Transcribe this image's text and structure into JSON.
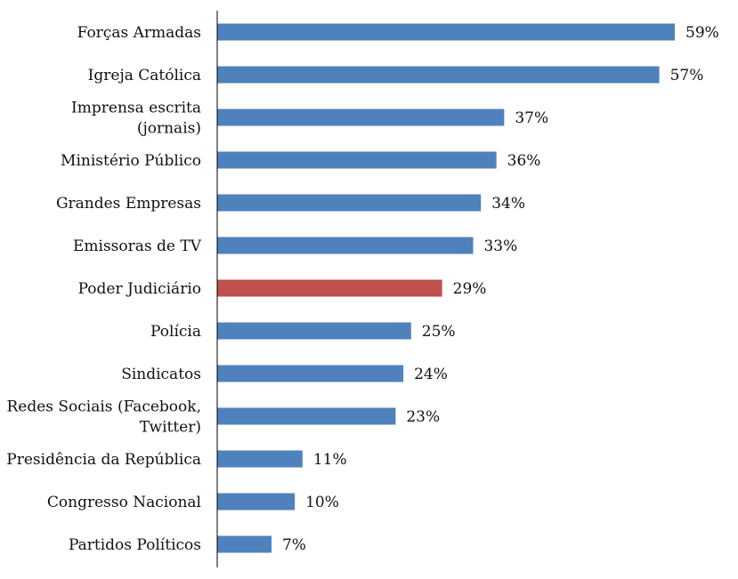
{
  "chart_data": {
    "type": "bar",
    "orientation": "horizontal",
    "categories": [
      [
        "Forças Armadas"
      ],
      [
        "Igreja Católica"
      ],
      [
        "Imprensa escrita",
        "(jornais)"
      ],
      [
        "Ministério Público"
      ],
      [
        "Grandes Empresas"
      ],
      [
        "Emissoras de TV"
      ],
      [
        "Poder Judiciário"
      ],
      [
        "Polícia"
      ],
      [
        "Sindicatos"
      ],
      [
        "Redes Sociais (Facebook,",
        "Twitter)"
      ],
      [
        "Presidência da República"
      ],
      [
        "Congresso Nacional"
      ],
      [
        "Partidos Políticos"
      ]
    ],
    "values": [
      59,
      57,
      37,
      36,
      34,
      33,
      29,
      25,
      24,
      23,
      11,
      10,
      7
    ],
    "value_labels": [
      "59%",
      "57%",
      "37%",
      "36%",
      "34%",
      "33%",
      "29%",
      "25%",
      "24%",
      "23%",
      "11%",
      "10%",
      "7%"
    ],
    "highlight_index": 6,
    "colors": {
      "default": "#4F81BD",
      "highlight": "#C0504D",
      "axis": "#000000"
    },
    "xlim": [
      0,
      59
    ],
    "grid": false,
    "legend": "none"
  }
}
